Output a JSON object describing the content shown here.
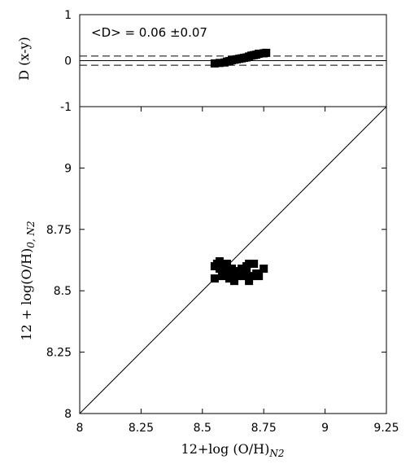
{
  "chart_data": [
    {
      "type": "scatter",
      "panel": "top",
      "ylabel": "D (x-y)",
      "xlim": [
        8,
        9.25
      ],
      "ylim": [
        -1,
        1
      ],
      "yticks": [
        "1",
        "0",
        "-1"
      ],
      "ytick_values": [
        1,
        0,
        -1
      ],
      "annotation": "<D> = 0.06 ±0.07",
      "reference_lines": [
        {
          "y": 0,
          "style": "solid"
        },
        {
          "y": 0.1,
          "style": "dashed"
        },
        {
          "y": -0.1,
          "style": "dashed"
        }
      ],
      "series": [
        {
          "x": [
            8.55,
            8.57,
            8.59,
            8.6,
            8.61,
            8.62,
            8.63,
            8.64,
            8.65,
            8.66,
            8.67,
            8.68,
            8.69,
            8.7,
            8.71,
            8.72,
            8.73,
            8.75,
            8.76
          ],
          "y": [
            -0.06,
            -0.05,
            -0.04,
            -0.02,
            -0.01,
            0.01,
            0.02,
            0.03,
            0.04,
            0.05,
            0.06,
            0.07,
            0.09,
            0.11,
            0.12,
            0.13,
            0.15,
            0.16,
            0.17
          ]
        }
      ]
    },
    {
      "type": "scatter",
      "panel": "bottom",
      "xlabel": "12+log (O/H)",
      "xlabel_sub": "N2",
      "ylabel": "12 + log(O/H)",
      "ylabel_sub": "0, N2",
      "xlim": [
        8,
        9.25
      ],
      "ylim": [
        8,
        9.25
      ],
      "xticks": [
        "8",
        "8.25",
        "8.5",
        "8.75",
        "9",
        "9.25"
      ],
      "xtick_values": [
        8,
        8.25,
        8.5,
        8.75,
        9,
        9.25
      ],
      "yticks": [
        "8",
        "8.25",
        "8.5",
        "8.75",
        "9"
      ],
      "ytick_values": [
        8,
        8.25,
        8.5,
        8.75,
        9
      ],
      "reference_lines": [
        {
          "type": "identity",
          "style": "solid"
        }
      ],
      "series": [
        {
          "x": [
            8.55,
            8.55,
            8.56,
            8.57,
            8.57,
            8.58,
            8.59,
            8.6,
            8.6,
            8.61,
            8.61,
            8.62,
            8.63,
            8.63,
            8.64,
            8.65,
            8.66,
            8.67,
            8.68,
            8.68,
            8.69,
            8.69,
            8.7,
            8.71,
            8.72,
            8.73,
            8.75
          ],
          "y": [
            8.6,
            8.55,
            8.61,
            8.62,
            8.59,
            8.56,
            8.6,
            8.58,
            8.61,
            8.55,
            8.57,
            8.59,
            8.54,
            8.58,
            8.56,
            8.57,
            8.59,
            8.56,
            8.6,
            8.58,
            8.61,
            8.54,
            8.56,
            8.61,
            8.57,
            8.56,
            8.59
          ]
        }
      ]
    }
  ]
}
